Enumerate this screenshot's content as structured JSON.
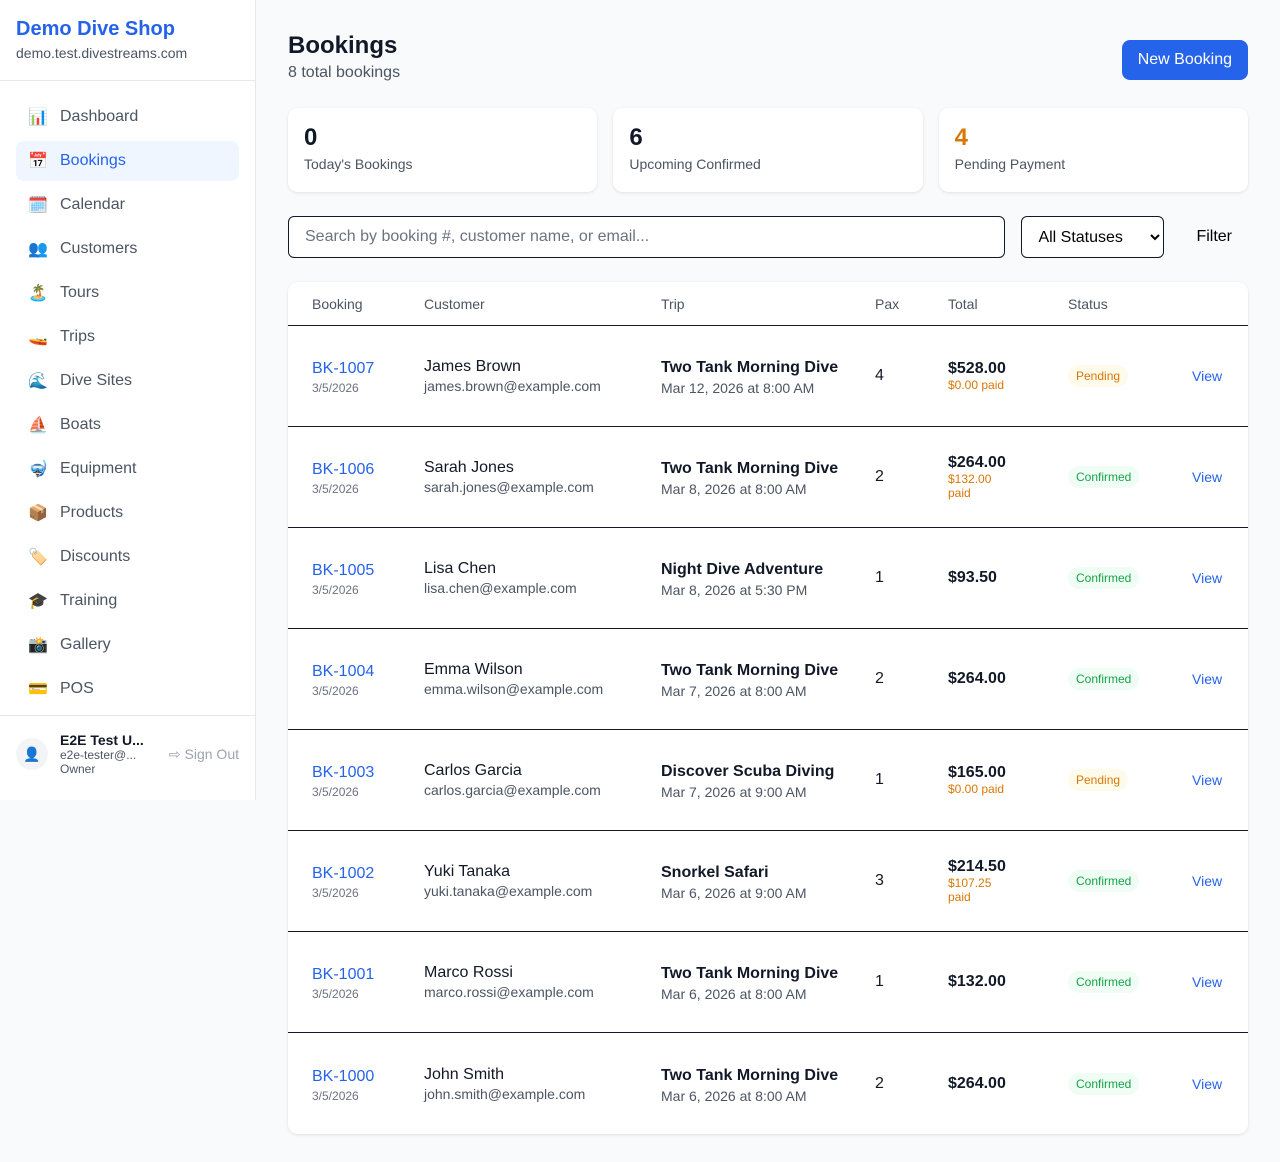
{
  "sidebar": {
    "shop_name": "Demo Dive Shop",
    "domain": "demo.test.divestreams.com",
    "items": [
      {
        "icon": "📊",
        "label": "Dashboard"
      },
      {
        "icon": "📅",
        "label": "Bookings",
        "active": true
      },
      {
        "icon": "🗓️",
        "label": "Calendar"
      },
      {
        "icon": "👥",
        "label": "Customers"
      },
      {
        "icon": "🏝️",
        "label": "Tours"
      },
      {
        "icon": "🚤",
        "label": "Trips"
      },
      {
        "icon": "🌊",
        "label": "Dive Sites"
      },
      {
        "icon": "⛵",
        "label": "Boats"
      },
      {
        "icon": "🤿",
        "label": "Equipment"
      },
      {
        "icon": "📦",
        "label": "Products"
      },
      {
        "icon": "🏷️",
        "label": "Discounts"
      },
      {
        "icon": "🎓",
        "label": "Training"
      },
      {
        "icon": "📸",
        "label": "Gallery"
      },
      {
        "icon": "💳",
        "label": "POS"
      }
    ],
    "user": {
      "name": "E2E Test U...",
      "email": "e2e-tester@...",
      "role": "Owner",
      "sign_out": "Sign Out"
    }
  },
  "header": {
    "title": "Bookings",
    "subtitle": "8 total bookings",
    "new_button": "New Booking"
  },
  "stats": [
    {
      "value": "0",
      "label": "Today's Bookings",
      "color": "#111827"
    },
    {
      "value": "6",
      "label": "Upcoming Confirmed",
      "color": "#111827"
    },
    {
      "value": "4",
      "label": "Pending Payment",
      "color": "#d97706"
    }
  ],
  "filters": {
    "search_placeholder": "Search by booking #, customer name, or email...",
    "status_selected": "All Statuses",
    "filter_button": "Filter"
  },
  "table": {
    "columns": [
      "Booking",
      "Customer",
      "Trip",
      "Pax",
      "Total",
      "Status",
      ""
    ],
    "rows": [
      {
        "id": "BK-1007",
        "date": "3/5/2026",
        "customer": "James Brown",
        "email": "james.brown@example.com",
        "trip": "Two Tank Morning Dive",
        "when": "Mar 12, 2026 at 8:00 AM",
        "pax": "4",
        "total": "$528.00",
        "paid": "$0.00 paid",
        "status": "Pending",
        "action": "View"
      },
      {
        "id": "BK-1006",
        "date": "3/5/2026",
        "customer": "Sarah Jones",
        "email": "sarah.jones@example.com",
        "trip": "Two Tank Morning Dive",
        "when": "Mar 8, 2026 at 8:00 AM",
        "pax": "2",
        "total": "$264.00",
        "paid": "$132.00 paid",
        "status": "Confirmed",
        "action": "View"
      },
      {
        "id": "BK-1005",
        "date": "3/5/2026",
        "customer": "Lisa Chen",
        "email": "lisa.chen@example.com",
        "trip": "Night Dive Adventure",
        "when": "Mar 8, 2026 at 5:30 PM",
        "pax": "1",
        "total": "$93.50",
        "paid": "",
        "status": "Confirmed",
        "action": "View"
      },
      {
        "id": "BK-1004",
        "date": "3/5/2026",
        "customer": "Emma Wilson",
        "email": "emma.wilson@example.com",
        "trip": "Two Tank Morning Dive",
        "when": "Mar 7, 2026 at 8:00 AM",
        "pax": "2",
        "total": "$264.00",
        "paid": "",
        "status": "Confirmed",
        "action": "View"
      },
      {
        "id": "BK-1003",
        "date": "3/5/2026",
        "customer": "Carlos Garcia",
        "email": "carlos.garcia@example.com",
        "trip": "Discover Scuba Diving",
        "when": "Mar 7, 2026 at 9:00 AM",
        "pax": "1",
        "total": "$165.00",
        "paid": "$0.00 paid",
        "status": "Pending",
        "action": "View"
      },
      {
        "id": "BK-1002",
        "date": "3/5/2026",
        "customer": "Yuki Tanaka",
        "email": "yuki.tanaka@example.com",
        "trip": "Snorkel Safari",
        "when": "Mar 6, 2026 at 9:00 AM",
        "pax": "3",
        "total": "$214.50",
        "paid": "$107.25 paid",
        "status": "Confirmed",
        "action": "View"
      },
      {
        "id": "BK-1001",
        "date": "3/5/2026",
        "customer": "Marco Rossi",
        "email": "marco.rossi@example.com",
        "trip": "Two Tank Morning Dive",
        "when": "Mar 6, 2026 at 8:00 AM",
        "pax": "1",
        "total": "$132.00",
        "paid": "",
        "status": "Confirmed",
        "action": "View"
      },
      {
        "id": "BK-1000",
        "date": "3/5/2026",
        "customer": "John Smith",
        "email": "john.smith@example.com",
        "trip": "Two Tank Morning Dive",
        "when": "Mar 6, 2026 at 8:00 AM",
        "pax": "2",
        "total": "$264.00",
        "paid": "",
        "status": "Confirmed",
        "action": "View"
      }
    ]
  }
}
